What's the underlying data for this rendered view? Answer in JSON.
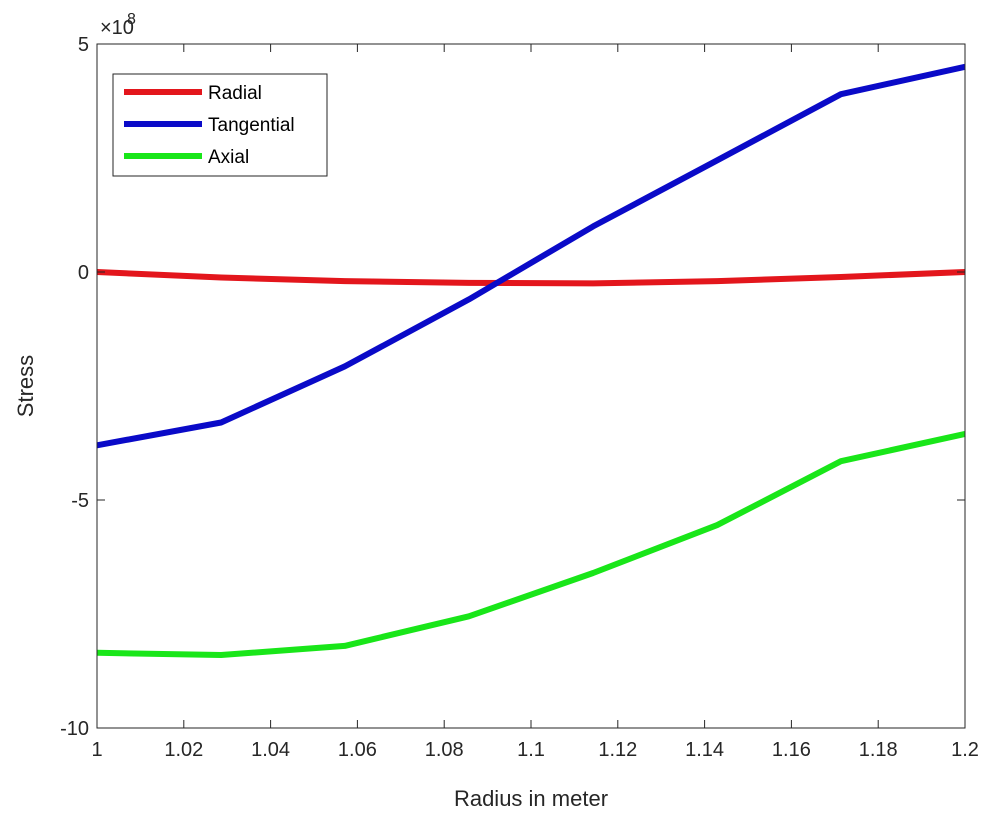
{
  "chart_data": {
    "type": "line",
    "xlabel": "Radius in meter",
    "ylabel": "Stress",
    "y_exponent_base": "×10",
    "y_exponent_power": "8",
    "xlim": [
      1,
      1.2
    ],
    "ylim": [
      -10,
      5
    ],
    "x_ticks": [
      1,
      1.02,
      1.04,
      1.06,
      1.08,
      1.1,
      1.12,
      1.14,
      1.16,
      1.18,
      1.2
    ],
    "x_tick_labels": [
      "1",
      "1.02",
      "1.04",
      "1.06",
      "1.08",
      "1.1",
      "1.12",
      "1.14",
      "1.16",
      "1.18",
      "1.2"
    ],
    "y_ticks": [
      -10,
      -5,
      0,
      5
    ],
    "y_tick_labels": [
      "-10",
      "-5",
      "0",
      "5"
    ],
    "grid": false,
    "legend_position": "top-left",
    "series": [
      {
        "name": "Radial",
        "color": "#e3161c",
        "x": [
          1.0,
          1.0286,
          1.0571,
          1.0857,
          1.1143,
          1.1429,
          1.1714,
          1.2
        ],
        "y": [
          0.0,
          -0.12,
          -0.2,
          -0.24,
          -0.25,
          -0.2,
          -0.11,
          0.0
        ]
      },
      {
        "name": "Tangential",
        "color": "#0a0ac8",
        "x": [
          1.0,
          1.0286,
          1.0571,
          1.0857,
          1.1143,
          1.1429,
          1.1714,
          1.2
        ],
        "y": [
          -3.8,
          -3.3,
          -2.07,
          -0.6,
          1.0,
          2.45,
          3.9,
          4.5
        ]
      },
      {
        "name": "Axial",
        "color": "#19e619",
        "x": [
          1.0,
          1.0286,
          1.0571,
          1.0857,
          1.1143,
          1.1429,
          1.1714,
          1.2
        ],
        "y": [
          -8.35,
          -8.4,
          -8.2,
          -7.55,
          -6.6,
          -5.55,
          -4.15,
          -3.55
        ]
      }
    ]
  }
}
